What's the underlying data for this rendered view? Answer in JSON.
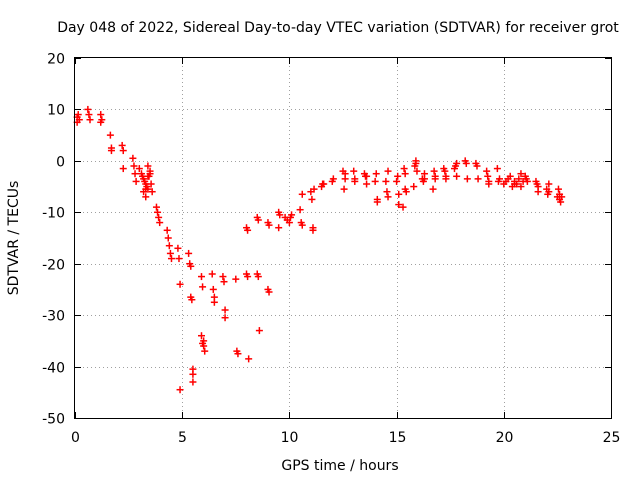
{
  "chart_data": {
    "type": "scatter",
    "title": "Day 048 of 2022, Sidereal Day-to-day VTEC variation (SDTVAR) for receiver grot",
    "xlabel": "GPS time / hours",
    "ylabel": "SDTVAR / TECUs",
    "xlim": [
      0,
      25
    ],
    "ylim": [
      -50,
      20
    ],
    "xticks": [
      0,
      5,
      10,
      15,
      20,
      25
    ],
    "yticks": [
      -50,
      -40,
      -30,
      -20,
      -10,
      0,
      10,
      20
    ],
    "grid": true,
    "marker": "+",
    "color": "#ff0000",
    "series": [
      {
        "name": "SDTVAR",
        "x": [
          0.1,
          0.1,
          0.15,
          0.2,
          0.6,
          0.65,
          0.7,
          1.2,
          1.2,
          1.25,
          1.65,
          1.7,
          1.7,
          2.2,
          2.25,
          2.25,
          2.7,
          2.75,
          2.8,
          2.85,
          3.0,
          3.1,
          3.15,
          3.2,
          3.25,
          3.3,
          3.35,
          3.4,
          3.45,
          3.5,
          3.55,
          3.6,
          3.2,
          3.3,
          3.4,
          3.5,
          3.3,
          3.4,
          3.8,
          3.85,
          3.9,
          3.95,
          4.3,
          4.35,
          4.4,
          4.45,
          4.5,
          4.8,
          4.85,
          4.9,
          4.9,
          5.3,
          5.35,
          5.4,
          5.4,
          5.45,
          5.5,
          5.5,
          5.5,
          5.9,
          5.95,
          6.0,
          6.0,
          6.05,
          5.9,
          5.95,
          6.4,
          6.45,
          6.5,
          6.5,
          6.9,
          6.95,
          7.0,
          7.0,
          7.5,
          7.55,
          7.6,
          8.0,
          8.05,
          8.1,
          8.5,
          8.55,
          8.6,
          9.0,
          9.05,
          8.0,
          8.05,
          8.5,
          8.55,
          9.0,
          9.05,
          9.5,
          9.55,
          9.5,
          9.8,
          9.9,
          10.0,
          10.05,
          10.1,
          10.5,
          10.55,
          10.6,
          10.6,
          11.0,
          11.05,
          11.1,
          11.1,
          11.15,
          11.5,
          11.55,
          11.6,
          12.0,
          12.05,
          12.5,
          12.55,
          12.6,
          12.6,
          13.0,
          13.05,
          13.05,
          13.5,
          13.55,
          13.6,
          13.6,
          14.0,
          14.05,
          14.1,
          14.1,
          14.5,
          14.55,
          14.6,
          14.6,
          15.0,
          15.05,
          15.1,
          15.1,
          15.3,
          15.35,
          15.4,
          15.4,
          15.45,
          15.8,
          15.85,
          15.9,
          15.9,
          15.95,
          16.2,
          16.25,
          16.3,
          16.3,
          16.7,
          16.75,
          16.8,
          16.8,
          17.2,
          17.25,
          17.3,
          17.3,
          17.7,
          17.75,
          17.8,
          17.8,
          18.2,
          18.25,
          18.3,
          18.7,
          18.75,
          18.8,
          19.2,
          19.25,
          19.3,
          19.3,
          19.7,
          19.75,
          19.8,
          20.0,
          20.1,
          20.2,
          20.3,
          20.4,
          20.5,
          20.6,
          20.7,
          20.8,
          20.9,
          21.0,
          21.05,
          21.1,
          20.5,
          20.8,
          21.0,
          21.5,
          21.55,
          21.6,
          21.6,
          22.0,
          22.05,
          22.1,
          22.1,
          22.5,
          22.55,
          22.6,
          22.6,
          22.65,
          22.7
        ],
        "y": [
          8.5,
          7.5,
          9.0,
          8.0,
          10.0,
          9.0,
          8.0,
          9.0,
          7.5,
          8.0,
          5.0,
          2.5,
          2.0,
          3.0,
          2.0,
          -1.5,
          0.5,
          -1.0,
          -2.5,
          -4.0,
          -1.5,
          -2.5,
          -3.0,
          -3.5,
          -4.0,
          -4.5,
          -5.0,
          -5.5,
          -3.0,
          -2.0,
          -4.5,
          -6.0,
          -6.0,
          -7.0,
          -1.0,
          -2.5,
          -5.5,
          -3.0,
          -9.0,
          -10.0,
          -11.0,
          -12.0,
          -13.5,
          -15.0,
          -16.5,
          -18.0,
          -19.0,
          -17.0,
          -19.0,
          -24.0,
          -44.5,
          -18.0,
          -20.0,
          -20.5,
          -26.5,
          -27.0,
          -40.5,
          -41.5,
          -43.0,
          -22.5,
          -24.5,
          -35.0,
          -36.0,
          -37.0,
          -34.0,
          -35.5,
          -22.0,
          -25.0,
          -26.5,
          -27.5,
          -22.5,
          -23.5,
          -29.0,
          -30.5,
          -23.0,
          -37.0,
          -37.5,
          -22.0,
          -22.5,
          -38.5,
          -22.0,
          -22.5,
          -33.0,
          -25.0,
          -25.5,
          -13.0,
          -13.5,
          -11.0,
          -11.5,
          -12.0,
          -12.5,
          -10.0,
          -10.5,
          -13.0,
          -11.0,
          -11.5,
          -12.0,
          -11.0,
          -10.5,
          -9.5,
          -12.0,
          -12.5,
          -6.5,
          -6.0,
          -7.5,
          -13.0,
          -13.5,
          -5.5,
          -5.0,
          -4.5,
          -4.5,
          -4.0,
          -3.5,
          -2.0,
          -5.5,
          -2.5,
          -3.5,
          -2.0,
          -3.5,
          -4.0,
          -2.5,
          -3.0,
          -4.5,
          -3.0,
          -4.0,
          -2.5,
          -7.5,
          -8.0,
          -4.0,
          -6.0,
          -7.0,
          -2.0,
          -4.0,
          -3.0,
          -6.5,
          -8.5,
          -9.0,
          -1.5,
          -2.5,
          -5.5,
          -6.0,
          -5.0,
          -1.0,
          -0.5,
          0.0,
          -2.0,
          -3.5,
          -4.0,
          -3.5,
          -2.5,
          -5.5,
          -2.0,
          -3.0,
          -3.5,
          -1.5,
          -2.0,
          -3.5,
          -3.0,
          -1.5,
          -1.0,
          -0.5,
          -3.0,
          0.0,
          -0.5,
          -3.5,
          -0.5,
          -1.0,
          -3.5,
          -2.0,
          -3.0,
          -4.0,
          -4.5,
          -1.5,
          -4.0,
          -3.5,
          -4.5,
          -4.0,
          -3.5,
          -3.0,
          -5.0,
          -4.0,
          -4.5,
          -3.5,
          -5.0,
          -4.0,
          -3.0,
          -3.5,
          -4.0,
          -4.5,
          -2.5,
          -3.0,
          -4.0,
          -4.5,
          -5.0,
          -6.0,
          -5.5,
          -6.5,
          -4.5,
          -6.0,
          -7.0,
          -5.5,
          -6.5,
          -7.5,
          -8.0,
          -7.0
        ]
      }
    ]
  }
}
